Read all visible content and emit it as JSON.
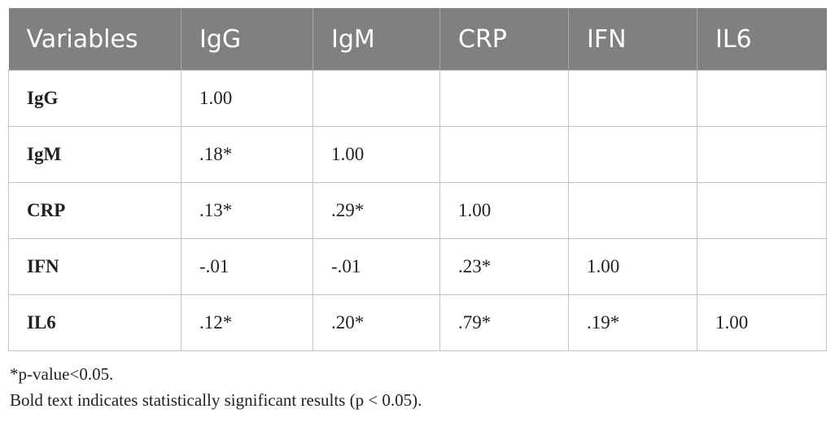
{
  "table": {
    "header": [
      "Variables",
      "IgG",
      "IgM",
      "CRP",
      "IFN",
      "IL6"
    ],
    "rows": [
      [
        "IgG",
        "1.00"
      ],
      [
        "IgM",
        ".18*",
        "1.00"
      ],
      [
        "CRP",
        ".13*",
        ".29*",
        "1.00"
      ],
      [
        "IFN",
        "-.01",
        "-.01",
        ".23*",
        "1.00"
      ],
      [
        "IL6",
        ".12*",
        ".20*",
        ".79*",
        ".19*",
        "1.00"
      ]
    ]
  },
  "footnotes": [
    "*p-value<0.05.",
    "Bold text indicates statistically significant results (p < 0.05)."
  ]
}
